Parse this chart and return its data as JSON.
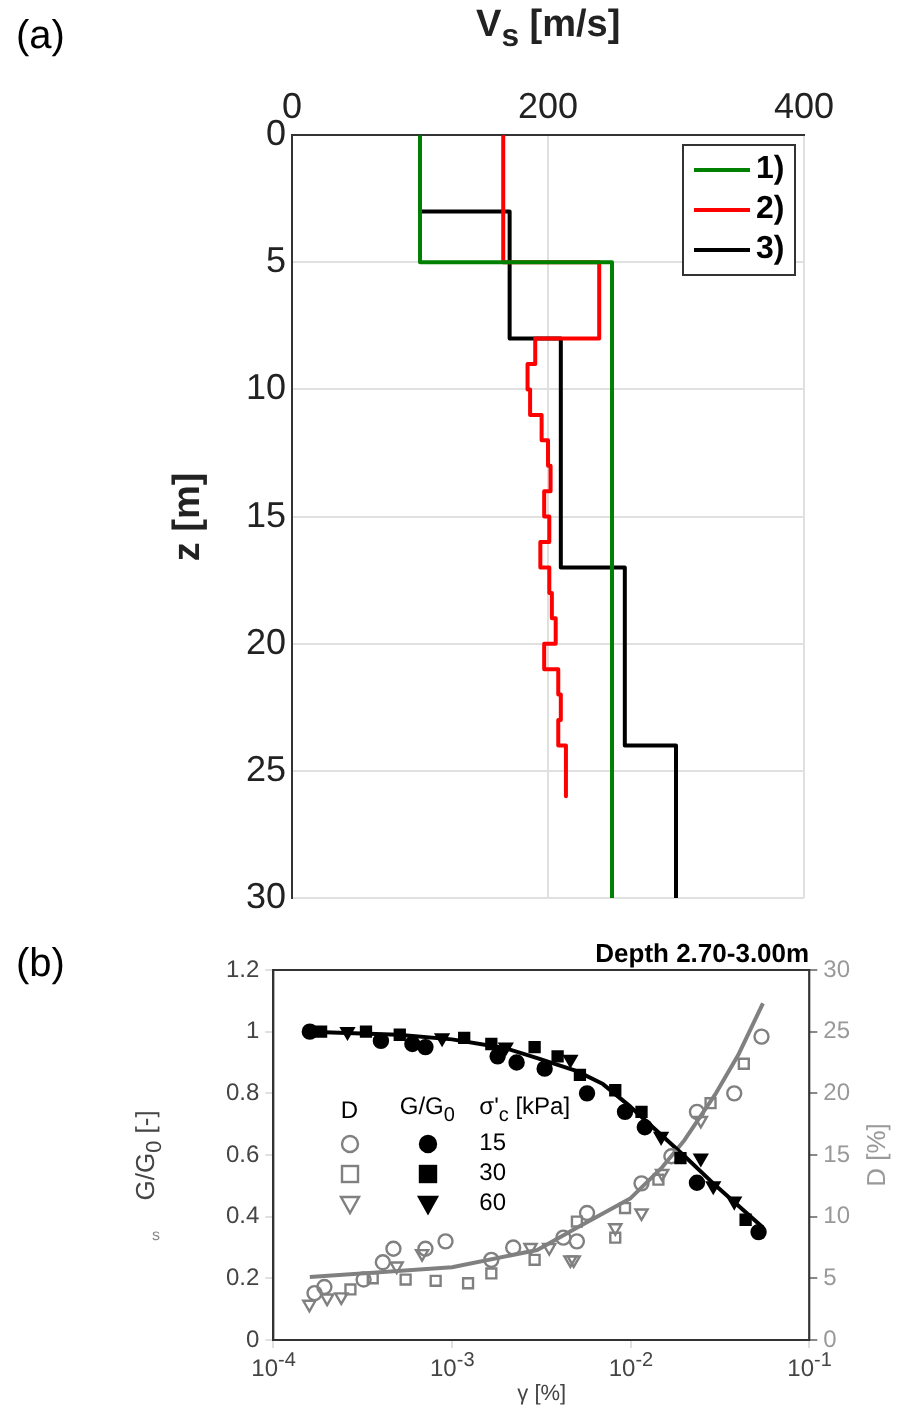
{
  "chart_data": [
    {
      "type": "line",
      "annotations": [
        "(a)"
      ],
      "xlabel": "V$_{s}$ [m/s]",
      "ylabel": "z [m]",
      "xlim": [
        0,
        400
      ],
      "xticks": [
        0,
        200,
        400
      ],
      "ylim": [
        30,
        0
      ],
      "yticks": [
        0,
        5,
        10,
        15,
        20,
        25,
        30
      ],
      "grid": true,
      "legend": "top right",
      "marker": "none",
      "line_style": "solid",
      "series": [
        {
          "name": "1)",
          "color": "#008000",
          "x": [
            100,
            100,
            250,
            250
          ],
          "values": [
            0,
            5,
            5,
            30
          ]
        },
        {
          "name": "2)",
          "color": "#ff0000",
          "x": [
            165,
            165,
            240,
            240,
            190,
            190,
            184,
            184,
            186,
            186,
            195,
            195,
            200,
            200,
            202,
            202,
            197,
            197,
            201,
            201,
            194,
            194,
            201,
            201,
            203,
            203,
            206,
            206,
            197,
            197,
            208,
            208,
            210,
            210,
            208,
            208,
            214,
            214
          ],
          "values": [
            0,
            5,
            5,
            8,
            8,
            9,
            9,
            10,
            10,
            11,
            11,
            12,
            12,
            13,
            13,
            14,
            14,
            15,
            15,
            16,
            16,
            17,
            17,
            18,
            18,
            19,
            19,
            20,
            20,
            21,
            21,
            22,
            22,
            23,
            23,
            24,
            24,
            26
          ]
        },
        {
          "name": "3)",
          "color": "#000000",
          "x": [
            100,
            100,
            170,
            170,
            210,
            210,
            260,
            260,
            300,
            300
          ],
          "values": [
            0,
            3,
            3,
            8,
            8,
            17,
            17,
            24,
            24,
            30
          ]
        }
      ]
    },
    {
      "type": "scatter",
      "title": "Depth 2.70-3.00m",
      "xlabel": "γ [%]",
      "ylabel": "G/G$_{0}$ [-]",
      "y2label": "D [%]",
      "legend_title": "σ'$_{c}$ [kPa]",
      "annotations": [
        "(b)",
        "D",
        "G/G$_{0}$",
        "s"
      ],
      "log": "x",
      "xlim": [
        0.0001,
        0.1
      ],
      "xticks": [
        {
          "value": 0.0001,
          "label": "10$^{-4}$"
        },
        {
          "value": 0.001,
          "label": "10$^{-3}$"
        },
        {
          "value": 0.01,
          "label": "10$^{-2}$"
        },
        {
          "value": 0.1,
          "label": "10$^{-1}$"
        }
      ],
      "ylim": [
        0,
        1.2
      ],
      "yticks": [
        0,
        0.2,
        0.4,
        0.6,
        0.8,
        1,
        1.2
      ],
      "y2lim": [
        0,
        30
      ],
      "y2ticks": [
        0,
        5,
        10,
        15,
        20,
        25,
        30
      ],
      "legend": "left",
      "series": [
        {
          "name": "15",
          "color": "#000000",
          "marker": "circle",
          "x": [
            0.00016,
            0.0004,
            0.0006,
            0.00071,
            0.0018,
            0.0023,
            0.0033,
            0.0057,
            0.0093,
            0.012,
            0.0235,
            0.052
          ],
          "values": [
            1.0,
            0.97,
            0.96,
            0.95,
            0.92,
            0.9,
            0.88,
            0.8,
            0.74,
            0.69,
            0.51,
            0.35
          ]
        },
        {
          "name": "30",
          "color": "#000000",
          "marker": "square",
          "x": [
            0.000185,
            0.00033,
            0.00051,
            0.00117,
            0.00166,
            0.0029,
            0.0039,
            0.0052,
            0.0082,
            0.0115,
            0.019,
            0.044
          ],
          "values": [
            1.0,
            1.0,
            0.99,
            0.98,
            0.96,
            0.95,
            0.92,
            0.86,
            0.81,
            0.74,
            0.59,
            0.39
          ]
        },
        {
          "name": "60",
          "color": "#000000",
          "marker": "triangle",
          "x": [
            0.00026,
            0.00088,
            0.002,
            0.0046,
            0.0148,
            0.0247,
            0.029,
            0.038
          ],
          "values": [
            1.0,
            0.98,
            0.95,
            0.91,
            0.66,
            0.59,
            0.5,
            0.45
          ]
        },
        {
          "color": "#808080",
          "marker": "circle",
          "axis": "y2",
          "x": [
            0.00017,
            0.000193,
            0.00032,
            0.00041,
            0.00047,
            0.00071,
            0.00092,
            0.00166,
            0.0022,
            0.0042,
            0.005,
            0.0057,
            0.0115,
            0.0169,
            0.0235,
            0.038,
            0.054
          ],
          "values": [
            3.8,
            4.3,
            4.9,
            6.3,
            7.4,
            7.4,
            8.0,
            6.5,
            7.5,
            8.3,
            8.0,
            10.3,
            12.7,
            14.9,
            18.5,
            20.0,
            24.6
          ]
        },
        {
          "color": "#808080",
          "marker": "square",
          "axis": "y2",
          "x": [
            0.00027,
            0.00036,
            0.00055,
            0.00081,
            0.00123,
            0.00166,
            0.0029,
            0.005,
            0.0082,
            0.0093,
            0.0143,
            0.028,
            0.043
          ],
          "values": [
            4.1,
            5.0,
            4.9,
            4.8,
            4.6,
            5.4,
            6.5,
            9.6,
            8.3,
            10.7,
            13.0,
            19.2,
            22.4
          ]
        },
        {
          "color": "#808080",
          "marker": "triangle",
          "axis": "y2",
          "x": [
            0.000159,
            0.0002,
            0.00024,
            0.00049,
            0.00068,
            0.00275,
            0.0035,
            0.0046,
            0.0048,
            0.0082,
            0.0115,
            0.015,
            0.0247
          ],
          "values": [
            2.9,
            3.4,
            3.5,
            6.0,
            7.0,
            7.5,
            7.5,
            6.5,
            6.5,
            9.1,
            10.3,
            13.5,
            17.8
          ]
        },
        {
          "type": "line",
          "color": "#000000",
          "marker": "none",
          "x": [
            0.00016,
            0.0005,
            0.001,
            0.002,
            0.003,
            0.005,
            0.007,
            0.01,
            0.02,
            0.03,
            0.055
          ],
          "values": [
            1.0,
            0.99,
            0.975,
            0.946,
            0.914,
            0.872,
            0.83,
            0.756,
            0.597,
            0.5,
            0.365
          ]
        },
        {
          "type": "line",
          "color": "#808080",
          "marker": "none",
          "axis": "y2",
          "x": [
            0.00016,
            0.001,
            0.003,
            0.005,
            0.01,
            0.015,
            0.02,
            0.03,
            0.04,
            0.055
          ],
          "values": [
            5.1,
            5.9,
            7.3,
            9.1,
            11.5,
            14.0,
            16.2,
            20.0,
            23.1,
            27.3
          ]
        }
      ]
    }
  ]
}
